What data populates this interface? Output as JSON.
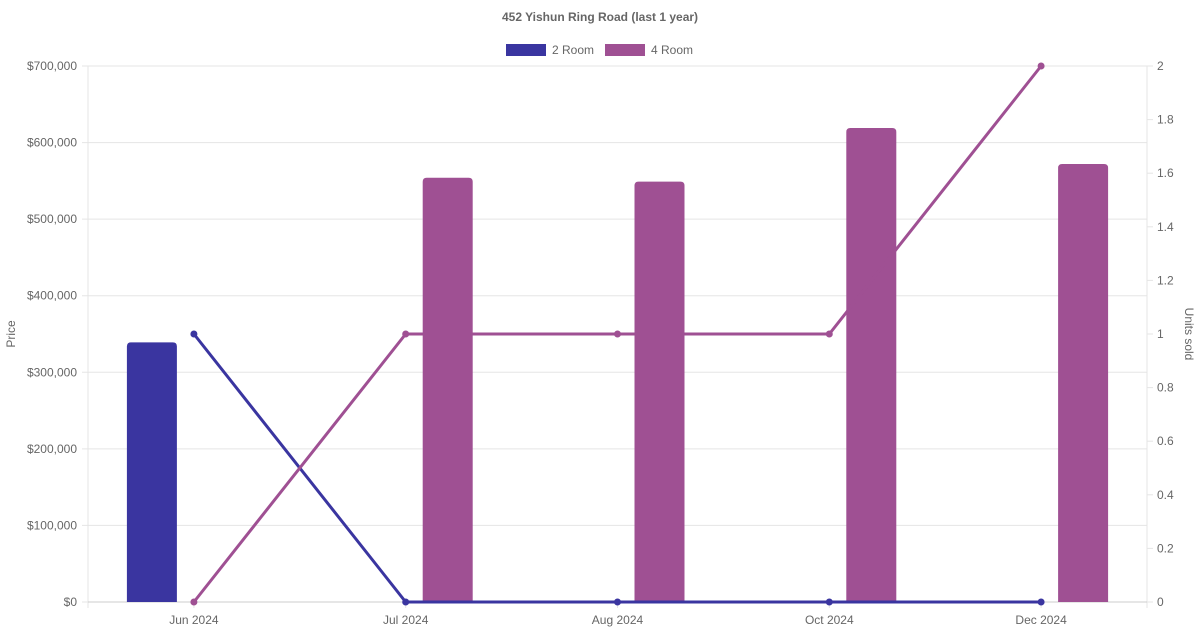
{
  "chart_data": {
    "type": "bar",
    "title": "452 Yishun Ring Road (last 1 year)",
    "categories": [
      "Jun 2024",
      "Jul 2024",
      "Aug 2024",
      "Oct 2024",
      "Dec 2024"
    ],
    "y_left": {
      "label": "Price",
      "min": 0,
      "max": 700000,
      "ticks": [
        "$0",
        "$100,000",
        "$200,000",
        "$300,000",
        "$400,000",
        "$500,000",
        "$600,000",
        "$700,000"
      ]
    },
    "y_right": {
      "label": "Units sold",
      "min": 0,
      "max": 2,
      "ticks": [
        "0",
        "0.2",
        "0.4",
        "0.6",
        "0.8",
        "1",
        "1.2",
        "1.4",
        "1.6",
        "1.8",
        "2"
      ]
    },
    "legend": {
      "placement": "top",
      "items": [
        {
          "name": "2 Room",
          "color": "#3a35a0"
        },
        {
          "name": "4 Room",
          "color": "#9f5093"
        }
      ]
    },
    "price_series": [
      {
        "name": "2 Room",
        "color": "#3a35a0",
        "values": [
          339000,
          null,
          null,
          null,
          null
        ]
      },
      {
        "name": "4 Room",
        "color": "#9f5093",
        "values": [
          null,
          554000,
          549000,
          619000,
          572000
        ]
      }
    ],
    "units_series": [
      {
        "name": "2 Room",
        "color": "#3a35a0",
        "values": [
          1,
          0,
          0,
          0,
          0
        ]
      },
      {
        "name": "4 Room",
        "color": "#9f5093",
        "values": [
          0,
          1,
          1,
          1,
          2
        ]
      }
    ],
    "grid": true
  }
}
